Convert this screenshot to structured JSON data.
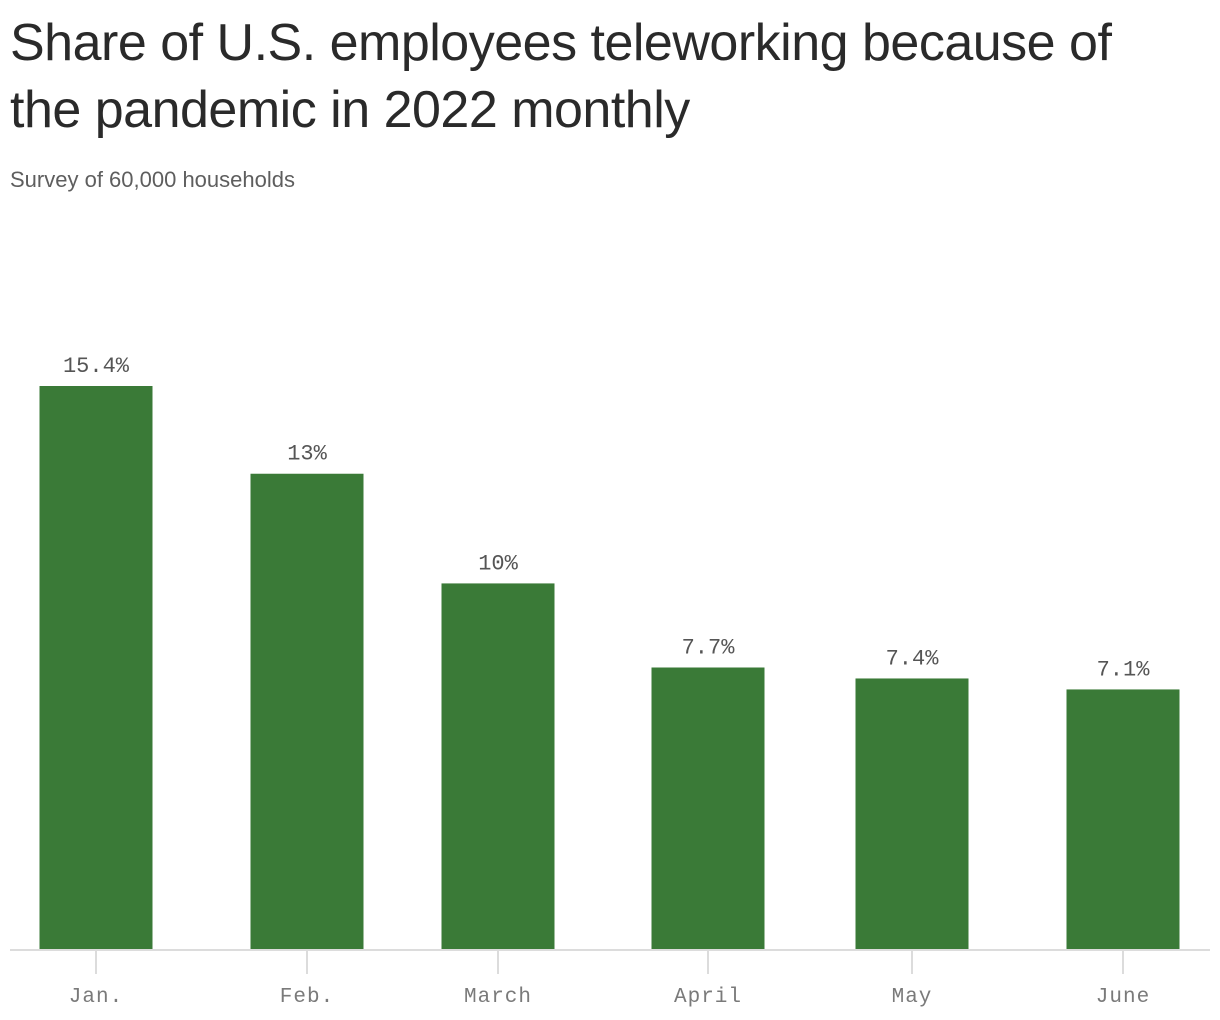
{
  "title": "Share of U.S. employees teleworking because of the pandemic in 2022 monthly",
  "subtitle": "Survey of 60,000 households",
  "colors": {
    "bar": "#3a7a37",
    "axis": "#dcdcdc",
    "title": "#2a2a2a",
    "subtitle": "#5e5e5e",
    "label": "#555555",
    "tick": "#7a7a7a"
  },
  "chart_data": {
    "type": "bar",
    "categories": [
      "Jan.",
      "Feb.",
      "March",
      "April",
      "May",
      "June"
    ],
    "values": [
      15.4,
      13,
      10,
      7.7,
      7.4,
      7.1
    ],
    "value_labels": [
      "15.4%",
      "13%",
      "10%",
      "7.7%",
      "7.4%",
      "7.1%"
    ],
    "title": "Share of U.S. employees teleworking because of the pandemic in 2022 monthly",
    "subtitle": "Survey of 60,000 households",
    "xlabel": "",
    "ylabel": "",
    "ylim": [
      0,
      15.4
    ],
    "grid": false,
    "legend": "none"
  }
}
